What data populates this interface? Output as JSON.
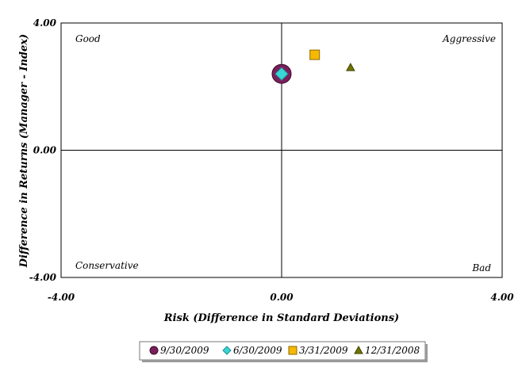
{
  "chart_data": {
    "type": "scatter",
    "title": "",
    "xlabel": "Risk (Difference in Standard Deviations)",
    "ylabel": "Difference in Returns (Manager - Index)",
    "xlim": [
      -4,
      4
    ],
    "ylim": [
      -4,
      4
    ],
    "x_ticks": [
      {
        "value": -4,
        "label": "-4.00"
      },
      {
        "value": 0,
        "label": "0.00"
      },
      {
        "value": 4,
        "label": "4.00"
      }
    ],
    "y_ticks": [
      {
        "value": 4,
        "label": "4.00"
      },
      {
        "value": 0,
        "label": "0.00"
      },
      {
        "value": -4,
        "label": "-4.00"
      }
    ],
    "grid": false,
    "quadrant_labels": {
      "top_left": "Good",
      "top_right": "Aggressive",
      "bottom_left": "Conservative",
      "bottom_right": "Bad"
    },
    "legend_position": "bottom-center",
    "series": [
      {
        "name": "9/30/2009",
        "marker": "circle",
        "color": "#7a1f5c",
        "values": [
          {
            "x": 0.0,
            "y": 2.4
          }
        ]
      },
      {
        "name": "6/30/2009",
        "marker": "diamond",
        "color": "#38d6d6",
        "values": [
          {
            "x": 0.0,
            "y": 2.4
          }
        ]
      },
      {
        "name": "3/31/2009",
        "marker": "square",
        "color": "#f6b900",
        "values": [
          {
            "x": 0.6,
            "y": 3.0
          }
        ]
      },
      {
        "name": "12/31/2008",
        "marker": "triangle",
        "color": "#6f7400",
        "values": [
          {
            "x": 1.25,
            "y": 2.6
          }
        ]
      }
    ]
  }
}
